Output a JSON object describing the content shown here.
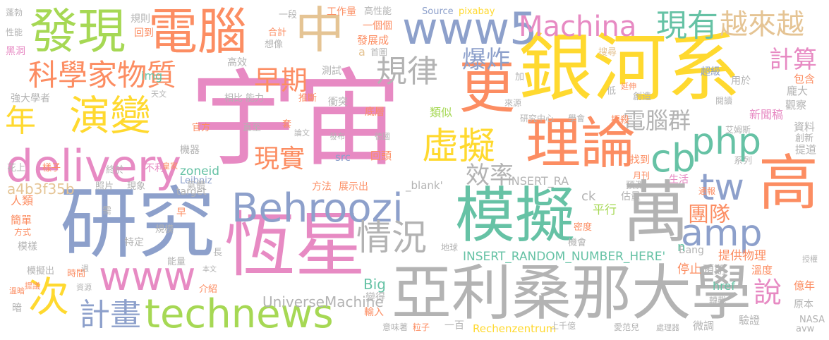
{
  "palette": {
    "pink": "#e78ac3",
    "gray": "#b3b3b3",
    "blue": "#8da0cb",
    "green": "#66c2a5",
    "orange": "#fc8d62",
    "lime": "#a6d854",
    "yellow": "#ffd92f",
    "tan": "#e5c494"
  },
  "words": [
    {
      "text": "宇宙",
      "color": "pink"
    },
    {
      "text": "銀河系",
      "color": "yellow"
    },
    {
      "text": "研究",
      "color": "blue"
    },
    {
      "text": "恆星",
      "color": "pink"
    },
    {
      "text": "亞利桑那大學",
      "color": "gray"
    },
    {
      "text": "模擬",
      "color": "green"
    },
    {
      "text": "萬",
      "color": "gray"
    },
    {
      "text": "Behroozi",
      "color": "blue"
    },
    {
      "text": "高",
      "color": "orange"
    },
    {
      "text": "理論",
      "color": "orange"
    },
    {
      "text": "更",
      "color": "orange"
    },
    {
      "text": "電腦",
      "color": "orange"
    },
    {
      "text": "發現",
      "color": "lime"
    },
    {
      "text": "中",
      "color": "tan"
    },
    {
      "text": "www5",
      "color": "blue"
    },
    {
      "text": "technews",
      "color": "lime"
    },
    {
      "text": "delivery",
      "color": "pink"
    },
    {
      "text": "www",
      "color": "pink"
    },
    {
      "text": "演變",
      "color": "yellow"
    },
    {
      "text": "次",
      "color": "yellow"
    },
    {
      "text": "虛擬",
      "color": "yellow"
    },
    {
      "text": "amp",
      "color": "blue"
    },
    {
      "text": "php",
      "color": "green"
    },
    {
      "text": "Machina",
      "color": "pink"
    },
    {
      "text": "情況",
      "color": "gray"
    },
    {
      "text": "科學家物質",
      "color": "orange"
    },
    {
      "text": "規律",
      "color": "gray"
    },
    {
      "text": "計畫",
      "color": "blue"
    },
    {
      "text": "cb",
      "color": "green"
    },
    {
      "text": "tw",
      "color": "blue"
    },
    {
      "text": "現有",
      "color": "green"
    },
    {
      "text": "越來越",
      "color": "tan"
    },
    {
      "text": "年",
      "color": "yellow"
    },
    {
      "text": "早期",
      "color": "orange"
    },
    {
      "text": "爆炸",
      "color": "blue"
    },
    {
      "text": "現實",
      "color": "orange"
    },
    {
      "text": "效率",
      "color": "gray"
    },
    {
      "text": "計算",
      "color": "pink"
    },
    {
      "text": "電腦群",
      "color": "gray"
    },
    {
      "text": "團隊",
      "color": "orange"
    },
    {
      "text": "說",
      "color": "pink"
    },
    {
      "text": "UniverseMachine",
      "color": "gray"
    },
    {
      "text": "INSERT_RANDOM_NUMBER_HERE'",
      "color": "green"
    },
    {
      "text": "a4b3f35b",
      "color": "tan"
    },
    {
      "text": "INSERT_RA",
      "color": "gray"
    },
    {
      "text": "zoneid",
      "color": "green"
    },
    {
      "text": "_blank'",
      "color": "gray"
    },
    {
      "text": "Rechenzentrum",
      "color": "yellow"
    },
    {
      "text": "Source",
      "color": "blue"
    },
    {
      "text": "pixabay",
      "color": "yellow"
    },
    {
      "text": "Leibniz",
      "color": "blue"
    },
    {
      "text": "target",
      "color": "gray"
    },
    {
      "text": "Bang",
      "color": "gray"
    },
    {
      "text": "Big",
      "color": "green"
    },
    {
      "text": "NASA",
      "color": "gray"
    },
    {
      "text": "avw",
      "color": "gray"
    },
    {
      "text": "href",
      "color": "green"
    },
    {
      "text": "src",
      "color": "blue"
    },
    {
      "text": "img",
      "color": "green"
    },
    {
      "text": "ck",
      "color": "gray"
    },
    {
      "text": "n",
      "color": "green"
    },
    {
      "text": "a",
      "color": "tan"
    },
    {
      "text": "提供物理",
      "color": "orange"
    },
    {
      "text": "停止",
      "color": "orange"
    },
    {
      "text": "平行",
      "color": "lime"
    },
    {
      "text": "預期",
      "color": "gray"
    },
    {
      "text": "微調",
      "color": "gray"
    },
    {
      "text": "驗證",
      "color": "gray"
    },
    {
      "text": "原本",
      "color": "gray"
    },
    {
      "text": "億年",
      "color": "orange"
    },
    {
      "text": "溫度",
      "color": "orange"
    },
    {
      "text": "新聞稿",
      "color": "pink"
    },
    {
      "text": "資料",
      "color": "gray"
    },
    {
      "text": "創新",
      "color": "gray"
    },
    {
      "text": "提道",
      "color": "gray"
    },
    {
      "text": "觀察",
      "color": "gray"
    },
    {
      "text": "龐大",
      "color": "gray"
    },
    {
      "text": "包含",
      "color": "orange"
    },
    {
      "text": "超級",
      "color": "blue"
    },
    {
      "text": "搜尋",
      "color": "tan"
    },
    {
      "text": "科學家物質",
      "color": "orange"
    },
    {
      "text": "發展成",
      "color": "orange"
    },
    {
      "text": "一個個",
      "color": "orange"
    },
    {
      "text": "工作量",
      "color": "orange"
    },
    {
      "text": "高性能",
      "color": "gray"
    },
    {
      "text": "一段",
      "color": "gray"
    },
    {
      "text": "想像",
      "color": "gray"
    },
    {
      "text": "規則",
      "color": "gray"
    },
    {
      "text": "回到",
      "color": "orange"
    },
    {
      "text": "合計",
      "color": "orange"
    },
    {
      "text": "高效",
      "color": "gray"
    },
    {
      "text": "測試",
      "color": "gray"
    },
    {
      "text": "首圖",
      "color": "gray"
    },
    {
      "text": "推斷",
      "color": "orange"
    },
    {
      "text": "衝突",
      "color": "gray"
    },
    {
      "text": "底層",
      "color": "orange"
    },
    {
      "text": "類似",
      "color": "lime"
    },
    {
      "text": "來源",
      "color": "gray"
    },
    {
      "text": "研究中心",
      "color": "gray"
    },
    {
      "text": "學會",
      "color": "gray"
    },
    {
      "text": "扼殺",
      "color": "orange"
    },
    {
      "text": "閱讀",
      "color": "gray"
    },
    {
      "text": "艾姆斯",
      "color": "gray"
    },
    {
      "text": "找到",
      "color": "orange"
    },
    {
      "text": "月刊",
      "color": "orange"
    },
    {
      "text": "預測",
      "color": "gray"
    },
    {
      "text": "估量",
      "color": "gray"
    },
    {
      "text": "生活",
      "color": "pink"
    },
    {
      "text": "通報",
      "color": "orange"
    },
    {
      "text": "系列",
      "color": "gray"
    },
    {
      "text": "用於",
      "color": "gray"
    },
    {
      "text": "創造",
      "color": "gray"
    },
    {
      "text": "延伸",
      "color": "orange"
    },
    {
      "text": "低",
      "color": "gray"
    },
    {
      "text": "加",
      "color": "gray"
    },
    {
      "text": "蓬勃",
      "color": "gray"
    },
    {
      "text": "性能",
      "color": "gray"
    },
    {
      "text": "黑洞",
      "color": "pink"
    },
    {
      "text": "強大學者",
      "color": "gray"
    },
    {
      "text": "天文",
      "color": "gray"
    },
    {
      "text": "花上",
      "color": "gray"
    },
    {
      "text": "樣子",
      "color": "orange"
    },
    {
      "text": "終於",
      "color": "gray"
    },
    {
      "text": "不利",
      "color": "pink"
    },
    {
      "text": "皇家",
      "color": "orange"
    },
    {
      "text": "機器",
      "color": "gray"
    },
    {
      "text": "官方",
      "color": "orange"
    },
    {
      "text": "直至",
      "color": "gray"
    },
    {
      "text": "套",
      "color": "orange"
    },
    {
      "text": "論文",
      "color": "gray"
    },
    {
      "text": "發布",
      "color": "gray"
    },
    {
      "text": "德國",
      "color": "gray"
    },
    {
      "text": "回頭",
      "color": "orange"
    },
    {
      "text": "相比",
      "color": "gray"
    },
    {
      "text": "能力",
      "color": "gray"
    },
    {
      "text": "人類",
      "color": "orange"
    },
    {
      "text": "簡單",
      "color": "orange"
    },
    {
      "text": "方式",
      "color": "orange"
    },
    {
      "text": "模樣",
      "color": "gray"
    },
    {
      "text": "需",
      "color": "gray"
    },
    {
      "text": "照片",
      "color": "gray"
    },
    {
      "text": "現象",
      "color": "gray"
    },
    {
      "text": "規模",
      "color": "gray"
    },
    {
      "text": "特定",
      "color": "gray"
    },
    {
      "text": "早",
      "color": "orange"
    },
    {
      "text": "方法",
      "color": "orange"
    },
    {
      "text": "展示出",
      "color": "orange"
    },
    {
      "text": "氣體",
      "color": "gray"
    },
    {
      "text": "密度",
      "color": "orange"
    },
    {
      "text": "機會",
      "color": "gray"
    },
    {
      "text": "模擬出",
      "color": "gray"
    },
    {
      "text": "時間",
      "color": "orange"
    },
    {
      "text": "週",
      "color": "gray"
    },
    {
      "text": "能量",
      "color": "gray"
    },
    {
      "text": "本文",
      "color": "gray"
    },
    {
      "text": "長",
      "color": "gray"
    },
    {
      "text": "地球",
      "color": "gray"
    },
    {
      "text": "授權",
      "color": "gray"
    },
    {
      "text": "提議",
      "color": "orange"
    },
    {
      "text": "溫暗",
      "color": "orange"
    },
    {
      "text": "資源",
      "color": "gray"
    },
    {
      "text": "介紹",
      "color": "orange"
    },
    {
      "text": "暗",
      "color": "gray"
    },
    {
      "text": "變得",
      "color": "gray"
    },
    {
      "text": "輸入",
      "color": "orange"
    },
    {
      "text": "意味著",
      "color": "gray"
    },
    {
      "text": "粒子",
      "color": "orange"
    },
    {
      "text": "一百",
      "color": "gray"
    },
    {
      "text": "上千億",
      "color": "gray"
    },
    {
      "text": "愛范兒",
      "color": "gray"
    },
    {
      "text": "處理器",
      "color": "gray"
    },
    {
      "text": "轉載",
      "color": "gray"
    }
  ]
}
